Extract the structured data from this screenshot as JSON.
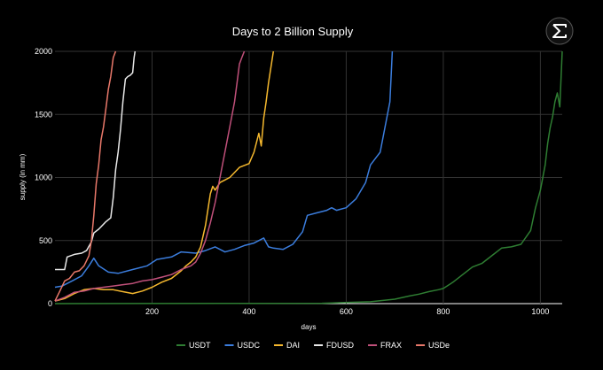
{
  "logo_icon": "sigma-icon",
  "chart_data": {
    "type": "line",
    "title": "Days to 2 Billion Supply",
    "xlabel": "days",
    "ylabel": "supply (in mm)",
    "xlim": [
      0,
      1045
    ],
    "ylim": [
      0,
      2000
    ],
    "xticks": [
      200,
      400,
      600,
      800,
      1000
    ],
    "yticks": [
      0,
      500,
      1000,
      1500,
      2000
    ],
    "grid": true,
    "legend_position": "bottom",
    "series": [
      {
        "name": "USDT",
        "color": "#2e7d32",
        "x": [
          0,
          550,
          650,
          700,
          730,
          750,
          770,
          790,
          800,
          820,
          840,
          860,
          880,
          900,
          920,
          940,
          960,
          980,
          990,
          1000,
          1010,
          1015,
          1020,
          1025,
          1030,
          1035,
          1040,
          1045
        ],
        "y": [
          0,
          3,
          15,
          35,
          60,
          75,
          95,
          110,
          120,
          170,
          230,
          290,
          320,
          380,
          440,
          450,
          470,
          580,
          760,
          900,
          1100,
          1270,
          1390,
          1480,
          1600,
          1670,
          1560,
          2000
        ]
      },
      {
        "name": "USDC",
        "color": "#3b7ddd",
        "x": [
          0,
          15,
          35,
          55,
          70,
          80,
          90,
          110,
          130,
          160,
          190,
          210,
          240,
          260,
          290,
          310,
          330,
          350,
          370,
          390,
          410,
          430,
          440,
          450,
          470,
          490,
          510,
          520,
          540,
          560,
          570,
          580,
          600,
          620,
          640,
          650,
          660,
          670,
          680,
          690,
          695
        ],
        "y": [
          130,
          140,
          180,
          220,
          300,
          360,
          300,
          250,
          240,
          270,
          300,
          350,
          370,
          410,
          400,
          420,
          450,
          410,
          430,
          460,
          480,
          520,
          450,
          440,
          430,
          470,
          570,
          700,
          720,
          740,
          760,
          740,
          760,
          830,
          960,
          1100,
          1150,
          1200,
          1400,
          1600,
          2000
        ]
      },
      {
        "name": "DAI",
        "color": "#f5b82e",
        "x": [
          0,
          20,
          40,
          60,
          80,
          100,
          120,
          140,
          160,
          180,
          200,
          220,
          240,
          260,
          270,
          280,
          290,
          300,
          310,
          320,
          325,
          330,
          340,
          360,
          380,
          400,
          410,
          420,
          425,
          430,
          435,
          440,
          450
        ],
        "y": [
          20,
          40,
          80,
          110,
          120,
          110,
          110,
          95,
          80,
          100,
          130,
          170,
          200,
          260,
          300,
          330,
          370,
          450,
          620,
          870,
          930,
          900,
          960,
          1000,
          1080,
          1110,
          1200,
          1350,
          1250,
          1470,
          1600,
          1750,
          2000
        ]
      },
      {
        "name": "FDUSD",
        "color": "#e8e8e8",
        "x": [
          0,
          20,
          25,
          40,
          55,
          65,
          75,
          80,
          90,
          95,
          105,
          115,
          120,
          125,
          130,
          135,
          140,
          145,
          150,
          155,
          160,
          163,
          165
        ],
        "y": [
          270,
          270,
          370,
          390,
          400,
          420,
          490,
          560,
          590,
          610,
          650,
          680,
          840,
          1060,
          1200,
          1380,
          1600,
          1780,
          1800,
          1810,
          1830,
          1950,
          2000
        ]
      },
      {
        "name": "FRAX",
        "color": "#c0507a",
        "x": [
          0,
          20,
          40,
          60,
          80,
          100,
          120,
          140,
          160,
          180,
          200,
          220,
          240,
          260,
          280,
          290,
          300,
          310,
          320,
          330,
          340,
          350,
          360,
          370,
          375,
          380,
          385,
          390
        ],
        "y": [
          20,
          50,
          90,
          100,
          120,
          130,
          140,
          150,
          160,
          180,
          190,
          210,
          230,
          270,
          300,
          330,
          400,
          500,
          640,
          800,
          1000,
          1200,
          1400,
          1600,
          1750,
          1900,
          1950,
          2000
        ]
      },
      {
        "name": "USDe",
        "color": "#e8786a",
        "x": [
          0,
          10,
          20,
          30,
          40,
          50,
          60,
          70,
          75,
          80,
          85,
          90,
          95,
          100,
          105,
          110,
          115,
          120,
          125
        ],
        "y": [
          20,
          100,
          180,
          200,
          250,
          260,
          300,
          380,
          500,
          700,
          950,
          1100,
          1300,
          1400,
          1550,
          1700,
          1800,
          1950,
          2000
        ]
      }
    ]
  }
}
